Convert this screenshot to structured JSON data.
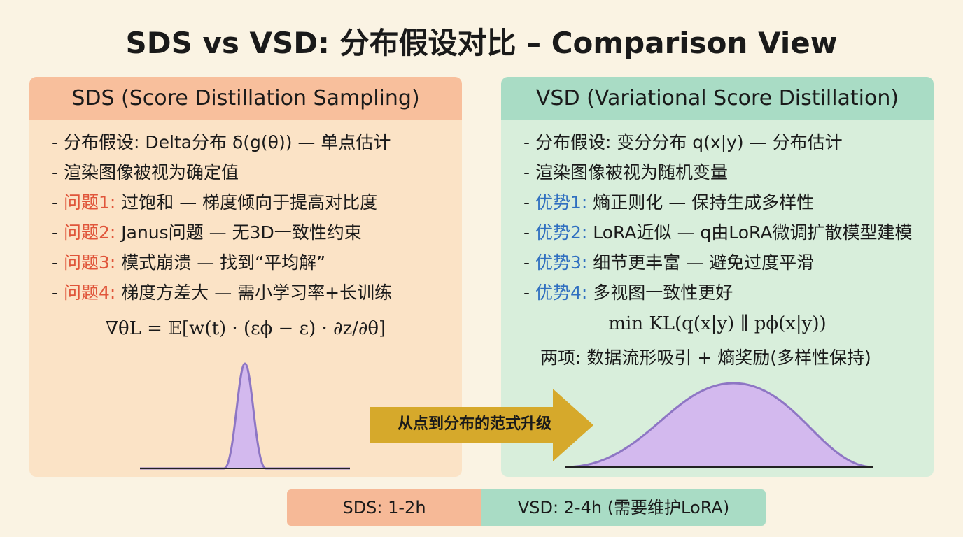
{
  "header": {
    "title": "SDS vs VSD: 分布假设对比 – Comparison View"
  },
  "panels": [
    {
      "title": "SDS (Score Distillation Sampling)",
      "items": [
        {
          "text": "分布假设: Delta分布 δ(g(θ)) — 单点估计"
        },
        {
          "text": "渲染图像被视为确定值"
        },
        {
          "label": "问题1:",
          "text": "过饱和 — 梯度倾向于提高对比度"
        },
        {
          "label": "问题2:",
          "text": "Janus问题 — 无3D一致性约束"
        },
        {
          "label": "问题3:",
          "text": "模式崩溃 — 找到“平均解”"
        },
        {
          "label": "问题4:",
          "text": "梯度方差大 — 需小学习率+长训练"
        }
      ],
      "formula": "∇θL = 𝔼[w(t) · (εϕ − ε) · ∂z/∂θ]"
    },
    {
      "title": "VSD (Variational Score Distillation)",
      "items": [
        {
          "text": "分布假设: 变分分布 q(x|y) — 分布估计"
        },
        {
          "text": "渲染图像被视为随机变量"
        },
        {
          "label": "优势1:",
          "text": "熵正则化 — 保持生成多样性"
        },
        {
          "label": "优势2:",
          "text": "LoRA近似 — q由LoRA微调扩散模型建模"
        },
        {
          "label": "优势3:",
          "text": "细节更丰富 — 避免过度平滑"
        },
        {
          "label": "优势4:",
          "text": "多视图一致性更好"
        }
      ],
      "formula": "min KL(q(x|y) ∥ pϕ(x|y))",
      "note": "两项: 数据流形吸引 + 熵奖励(多样性保持)"
    }
  ],
  "arrow": {
    "label": "从点到分布的范式升级"
  },
  "footer": {
    "left": "SDS: 1-2h",
    "right": "VSD: 2-4h (需要维护LoRA)"
  }
}
